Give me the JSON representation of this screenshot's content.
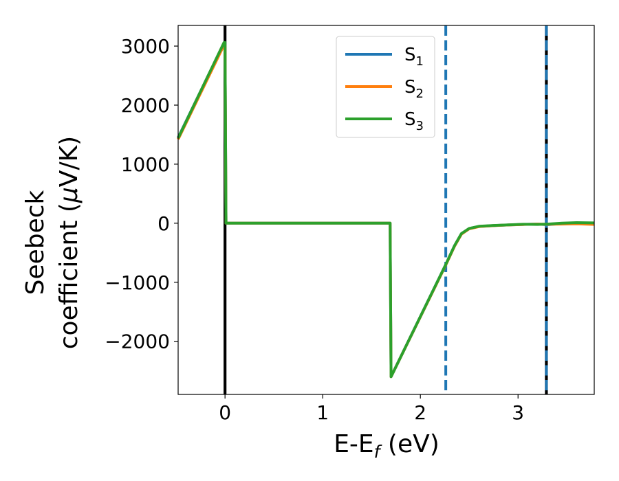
{
  "chart_data": {
    "type": "line",
    "xlabel": {
      "main": "E-E",
      "sub": "f",
      "rest": " (eV)"
    },
    "ylabel": {
      "line1": "Seebeck",
      "line2_main": "coefficient  (",
      "line2_mu": "μ",
      "line2_rest": "V/K)"
    },
    "xlim": [
      -0.48,
      3.78
    ],
    "ylim": [
      -2900,
      3350
    ],
    "xticks": [
      {
        "value": 0,
        "label": "0"
      },
      {
        "value": 1,
        "label": "1"
      },
      {
        "value": 2,
        "label": "2"
      },
      {
        "value": 3,
        "label": "3"
      }
    ],
    "yticks": [
      {
        "value": 3000,
        "label": "3000"
      },
      {
        "value": 2000,
        "label": "2000"
      },
      {
        "value": 1000,
        "label": "1000"
      },
      {
        "value": 0,
        "label": "0"
      },
      {
        "value": -1000,
        "label": "−1000"
      },
      {
        "value": -2000,
        "label": "−2000"
      }
    ],
    "grid": false,
    "legend": {
      "position": "top-center",
      "entries": [
        {
          "main": "S",
          "sub": "1",
          "color": "#1f77b4"
        },
        {
          "main": "S",
          "sub": "2",
          "color": "#ff7f0e"
        },
        {
          "main": "S",
          "sub": "3",
          "color": "#2ca02c"
        }
      ]
    },
    "vlines": [
      {
        "x": 0.0,
        "color": "#000000",
        "style": "solid"
      },
      {
        "x": 2.26,
        "color": "#1f77b4",
        "style": "dashed"
      },
      {
        "x": 3.29,
        "color": "#000000",
        "style": "solid"
      },
      {
        "x": 3.29,
        "color": "#1f77b4",
        "style": "dashed"
      }
    ],
    "series": [
      {
        "color": "#1f77b4",
        "x": [
          -0.48,
          -0.01,
          0.0,
          0.01,
          1.69,
          1.7,
          2.26,
          2.35,
          2.42,
          2.5,
          2.6,
          2.75,
          2.9,
          3.05,
          3.2,
          3.3,
          3.45,
          3.6,
          3.78
        ],
        "y": [
          1450,
          3050,
          3050,
          0,
          0,
          -2600,
          -700,
          -380,
          -180,
          -90,
          -55,
          -40,
          -30,
          -20,
          -15,
          -25,
          -5,
          5,
          0
        ]
      },
      {
        "color": "#ff7f0e",
        "x": [
          -0.48,
          -0.01,
          0.0,
          0.01,
          1.69,
          1.7,
          2.26,
          2.35,
          2.42,
          2.5,
          2.6,
          2.75,
          2.9,
          3.05,
          3.2,
          3.3,
          3.45,
          3.6,
          3.78
        ],
        "y": [
          1420,
          3020,
          3020,
          0,
          0,
          -2600,
          -710,
          -390,
          -185,
          -95,
          -58,
          -42,
          -30,
          -22,
          -15,
          -18,
          -15,
          -10,
          -20
        ]
      },
      {
        "color": "#2ca02c",
        "x": [
          -0.48,
          -0.01,
          0.0,
          0.01,
          1.69,
          1.7,
          2.26,
          2.35,
          2.42,
          2.5,
          2.6,
          2.75,
          2.9,
          3.05,
          3.2,
          3.3,
          3.45,
          3.6,
          3.78
        ],
        "y": [
          1440,
          3060,
          3060,
          0,
          0,
          -2600,
          -700,
          -380,
          -175,
          -88,
          -52,
          -38,
          -28,
          -18,
          -20,
          -15,
          0,
          10,
          5
        ]
      }
    ]
  }
}
